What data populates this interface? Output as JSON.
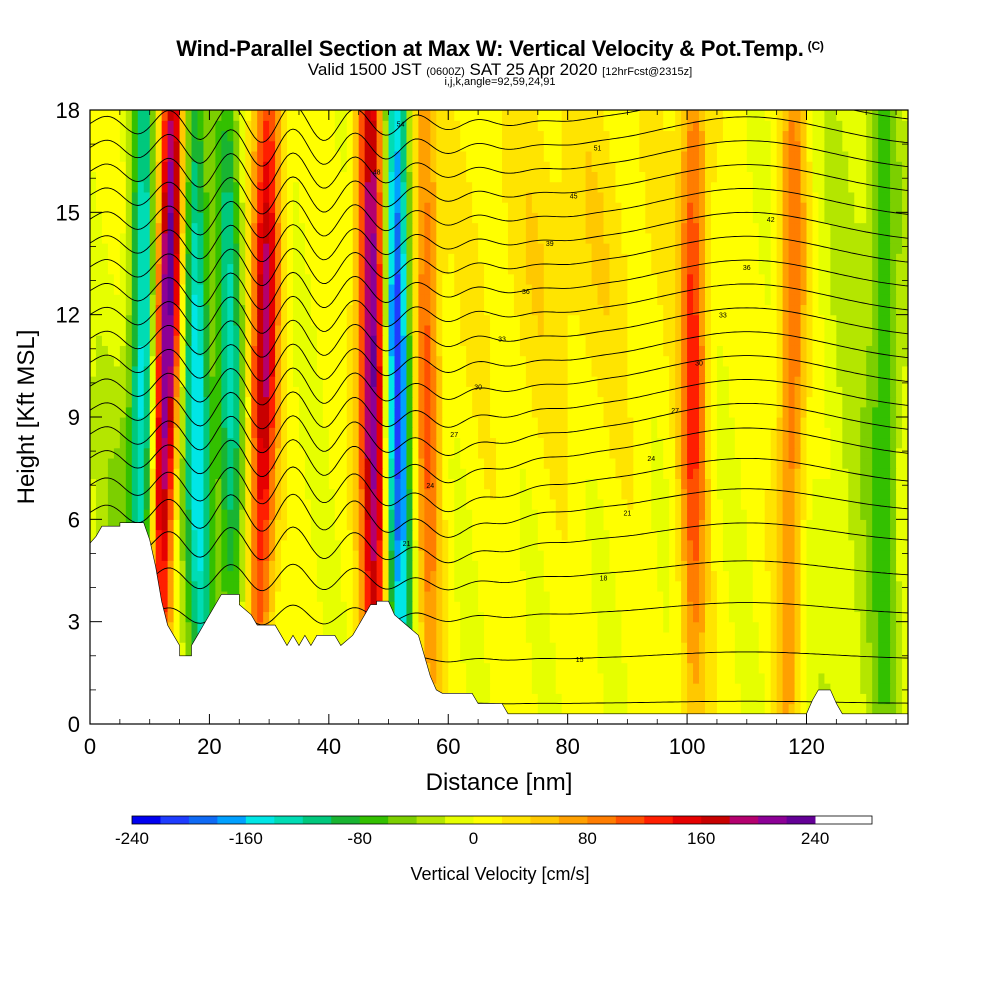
{
  "chart_data": {
    "type": "heatmap",
    "title": "Wind-Parallel Section at Max W: Vertical Velocity & Pot.Temp.",
    "title_mark": "(C)",
    "subtitle_valid": "Valid 1500 JST",
    "subtitle_utc": "(0600Z)",
    "subtitle_date": "SAT 25 Apr 2020",
    "subtitle_fcst": "[12hrFcst@2315z]",
    "indices_label": "i,j,k,angle=92,59,24,91",
    "xlabel": "Distance [nm]",
    "ylabel": "Height [Kft MSL]",
    "xlim": [
      0,
      137
    ],
    "ylim": [
      0,
      18
    ],
    "xticks": [
      0,
      20,
      40,
      60,
      80,
      100,
      120
    ],
    "yticks": [
      0,
      3,
      6,
      9,
      12,
      15,
      18
    ],
    "colorbar": {
      "label": "Vertical Velocity [cm/s]",
      "range": [
        -240,
        280
      ],
      "step": 20,
      "tick_labels": [
        -240,
        -160,
        -80,
        0,
        80,
        160,
        240
      ],
      "colors": [
        "#0000f0",
        "#1e3cff",
        "#0f6af5",
        "#00a0ff",
        "#00e6e6",
        "#00dcb4",
        "#00c87d",
        "#19b432",
        "#33c000",
        "#7ccf00",
        "#b4e600",
        "#e6ff00",
        "#ffff00",
        "#ffe400",
        "#ffc800",
        "#ffa000",
        "#ff7d00",
        "#ff5000",
        "#ff1e00",
        "#e60000",
        "#c80000",
        "#b4006e",
        "#8c0096",
        "#640096"
      ]
    },
    "updraft_bands": [
      {
        "x_bottom": 11,
        "x_top": 14,
        "peak": 260
      },
      {
        "x_bottom": 28,
        "x_top": 30,
        "peak": 180
      },
      {
        "x_bottom": 48,
        "x_top": 47,
        "peak": 240
      },
      {
        "x_bottom": 57,
        "x_top": 56,
        "peak": 100
      },
      {
        "x_bottom": 101,
        "x_top": 101,
        "peak": 120
      },
      {
        "x_bottom": 117,
        "x_top": 118,
        "peak": 100
      }
    ],
    "downdraft_bands": [
      {
        "x_bottom": 9,
        "x_top": 9,
        "peak": -150
      },
      {
        "x_bottom": 19,
        "x_top": 17,
        "peak": -160
      },
      {
        "x_bottom": 24,
        "x_top": 23,
        "peak": -120
      },
      {
        "x_bottom": 52,
        "x_top": 51,
        "peak": -240
      },
      {
        "x_bottom": 133,
        "x_top": 133,
        "peak": -60
      }
    ],
    "theta_contours": [
      {
        "base": 0.6,
        "label": "15"
      },
      {
        "base": 1.9,
        "label": "15"
      },
      {
        "base": 3.2,
        "label": "18"
      },
      {
        "base": 4.3,
        "label": "18"
      },
      {
        "base": 5.3,
        "label": "21"
      },
      {
        "base": 6.2,
        "label": "21"
      },
      {
        "base": 7.0,
        "label": "24"
      },
      {
        "base": 7.8,
        "label": "24"
      },
      {
        "base": 8.5,
        "label": "27"
      },
      {
        "base": 9.2,
        "label": "27"
      },
      {
        "base": 9.9,
        "label": "30"
      },
      {
        "base": 10.6,
        "label": "30"
      },
      {
        "base": 11.3,
        "label": "33"
      },
      {
        "base": 12.0,
        "label": "33"
      },
      {
        "base": 12.7,
        "label": "36"
      },
      {
        "base": 13.4,
        "label": "36"
      },
      {
        "base": 14.1,
        "label": "39"
      },
      {
        "base": 14.8,
        "label": "42"
      },
      {
        "base": 15.5,
        "label": "45"
      },
      {
        "base": 16.2,
        "label": "48"
      },
      {
        "base": 16.9,
        "label": "51"
      },
      {
        "base": 17.6,
        "label": "54"
      }
    ],
    "terrain": [
      [
        0,
        5.3
      ],
      [
        1,
        5.5
      ],
      [
        2,
        5.8
      ],
      [
        5,
        5.8
      ],
      [
        5,
        5.9
      ],
      [
        9,
        5.9
      ],
      [
        10,
        5.4
      ],
      [
        11,
        4.6
      ],
      [
        12,
        3.6
      ],
      [
        13,
        2.9
      ],
      [
        14,
        2.6
      ],
      [
        15,
        2.3
      ],
      [
        15,
        2.0
      ],
      [
        17,
        2.0
      ],
      [
        17,
        2.3
      ],
      [
        18,
        2.6
      ],
      [
        19,
        2.9
      ],
      [
        20,
        3.2
      ],
      [
        21,
        3.5
      ],
      [
        22,
        3.8
      ],
      [
        25,
        3.8
      ],
      [
        25,
        3.5
      ],
      [
        27,
        3.2
      ],
      [
        28,
        2.9
      ],
      [
        31,
        2.9
      ],
      [
        32,
        2.6
      ],
      [
        33,
        2.3
      ],
      [
        34,
        2.6
      ],
      [
        35,
        2.3
      ],
      [
        36,
        2.6
      ],
      [
        37,
        2.3
      ],
      [
        38,
        2.6
      ],
      [
        41,
        2.6
      ],
      [
        42,
        2.3
      ],
      [
        44,
        2.6
      ],
      [
        45,
        2.9
      ],
      [
        46,
        3.2
      ],
      [
        47,
        3.5
      ],
      [
        48,
        3.5
      ],
      [
        48,
        3.6
      ],
      [
        50,
        3.6
      ],
      [
        51,
        3.2
      ],
      [
        53,
        2.9
      ],
      [
        55,
        2.6
      ],
      [
        56,
        2.0
      ],
      [
        57,
        1.4
      ],
      [
        58,
        1.0
      ],
      [
        59,
        0.9
      ],
      [
        60,
        0.9
      ],
      [
        64,
        0.9
      ],
      [
        65,
        0.6
      ],
      [
        69,
        0.6
      ],
      [
        70,
        0.3
      ],
      [
        120,
        0.3
      ],
      [
        121,
        0.7
      ],
      [
        122,
        1.0
      ],
      [
        124,
        1.0
      ],
      [
        125,
        0.6
      ],
      [
        126,
        0.3
      ],
      [
        137,
        0.3
      ],
      [
        137,
        0
      ],
      [
        0,
        0
      ]
    ]
  }
}
